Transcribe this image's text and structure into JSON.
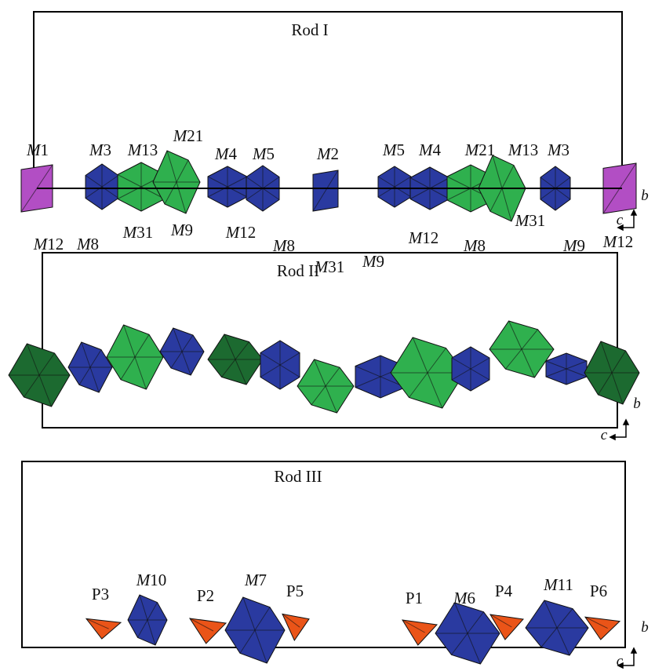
{
  "rods": [
    {
      "title": "Rod I",
      "labels": [
        "M1",
        "M3",
        "M13",
        "M21",
        "M4",
        "M5",
        "M2",
        "M5",
        "M4",
        "M21",
        "M13",
        "M3"
      ],
      "axes": {
        "b": "b",
        "c": "c"
      }
    },
    {
      "title": "Rod II",
      "labels": [
        "M12",
        "M8",
        "M31",
        "M9",
        "M12",
        "M8",
        "M31",
        "M9",
        "M12",
        "M8",
        "M31",
        "M9",
        "M12"
      ],
      "axes": {
        "b": "b",
        "c": "c"
      }
    },
    {
      "title": "Rod III",
      "labels": [
        "P3",
        "M10",
        "P2",
        "M7",
        "P5",
        "P1",
        "M6",
        "P4",
        "M11",
        "P6"
      ],
      "axes": {
        "b": "b",
        "c": "c"
      }
    }
  ]
}
